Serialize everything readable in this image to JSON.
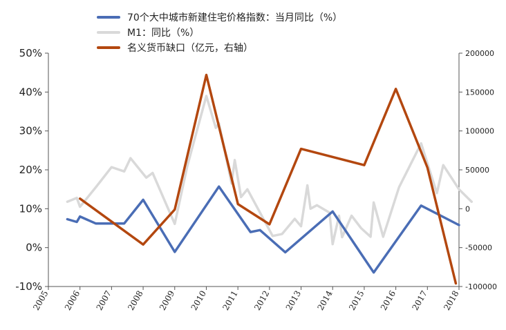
{
  "chart_data": {
    "type": "line",
    "legend_position": "top",
    "grid": false,
    "x_ticks": [
      "2005",
      "2006",
      "2007",
      "2008",
      "2009",
      "2010",
      "2011",
      "2012",
      "2013",
      "2014",
      "2015",
      "2016",
      "2017",
      "2018"
    ],
    "x_range": [
      2005.0,
      2018.0
    ],
    "y_left": {
      "ticks": [
        "50%",
        "40%",
        "30%",
        "20%",
        "10%",
        "0%",
        "-10%"
      ],
      "range": [
        -10,
        50
      ]
    },
    "y_right": {
      "ticks": [
        "200000",
        "150000",
        "100000",
        "50000",
        "0",
        "-50000",
        "-100000"
      ],
      "range": [
        -100000,
        200000
      ]
    },
    "series": [
      {
        "name": "70个大中城市新建住宅价格指数：当月同比（%）",
        "axis": "left",
        "color": "#4a6db5",
        "width": 3.5,
        "points": [
          [
            2005.6,
            7.3
          ],
          [
            2005.9,
            6.6
          ],
          [
            2006.0,
            8.0
          ],
          [
            2006.5,
            6.2
          ],
          [
            2007.4,
            6.2
          ],
          [
            2008.0,
            12.3
          ],
          [
            2009.0,
            -1.1
          ],
          [
            2010.4,
            15.7
          ],
          [
            2011.4,
            4.0
          ],
          [
            2011.7,
            4.5
          ],
          [
            2012.5,
            -1.2
          ],
          [
            2014.0,
            9.3
          ],
          [
            2015.3,
            -6.4
          ],
          [
            2016.8,
            10.8
          ],
          [
            2018.0,
            5.8
          ]
        ]
      },
      {
        "name": "M1：同比（%）",
        "axis": "left",
        "color": "#d9d9d9",
        "width": 3.5,
        "points": [
          [
            2005.6,
            11.8
          ],
          [
            2005.9,
            12.8
          ],
          [
            2006.0,
            10.5
          ],
          [
            2006.5,
            15.5
          ],
          [
            2007.0,
            20.7
          ],
          [
            2007.4,
            19.6
          ],
          [
            2007.6,
            23.0
          ],
          [
            2008.1,
            18.0
          ],
          [
            2008.3,
            19.2
          ],
          [
            2009.0,
            6.1
          ],
          [
            2009.4,
            21.0
          ],
          [
            2010.0,
            39.0
          ],
          [
            2010.3,
            30.8
          ],
          [
            2010.4,
            32.0
          ],
          [
            2010.8,
            16.5
          ],
          [
            2010.9,
            22.5
          ],
          [
            2011.1,
            13.0
          ],
          [
            2011.3,
            15.0
          ],
          [
            2011.9,
            6.0
          ],
          [
            2012.1,
            3.0
          ],
          [
            2012.4,
            3.5
          ],
          [
            2012.8,
            7.4
          ],
          [
            2013.0,
            5.5
          ],
          [
            2013.2,
            16.0
          ],
          [
            2013.3,
            10.0
          ],
          [
            2013.5,
            10.9
          ],
          [
            2013.9,
            9.0
          ],
          [
            2014.0,
            0.9
          ],
          [
            2014.2,
            8.2
          ],
          [
            2014.3,
            2.7
          ],
          [
            2014.6,
            8.2
          ],
          [
            2014.9,
            5.0
          ],
          [
            2015.2,
            2.8
          ],
          [
            2015.3,
            11.6
          ],
          [
            2015.6,
            2.8
          ],
          [
            2016.1,
            15.5
          ],
          [
            2016.8,
            26.8
          ],
          [
            2017.3,
            14.0
          ],
          [
            2017.5,
            21.2
          ],
          [
            2018.0,
            15.0
          ],
          [
            2018.4,
            11.8
          ]
        ]
      },
      {
        "name": "名义货币缺口（亿元，右轴）",
        "axis": "right",
        "color": "#b3470f",
        "width": 3.5,
        "points": [
          [
            2006.0,
            13000
          ],
          [
            2008.0,
            -46000
          ],
          [
            2009.0,
            -1000
          ],
          [
            2010.0,
            172000
          ],
          [
            2011.0,
            6000
          ],
          [
            2012.0,
            -20000
          ],
          [
            2013.0,
            77000
          ],
          [
            2015.0,
            56000
          ],
          [
            2016.0,
            154000
          ],
          [
            2017.0,
            53000
          ],
          [
            2017.9,
            -96000
          ]
        ]
      }
    ]
  }
}
